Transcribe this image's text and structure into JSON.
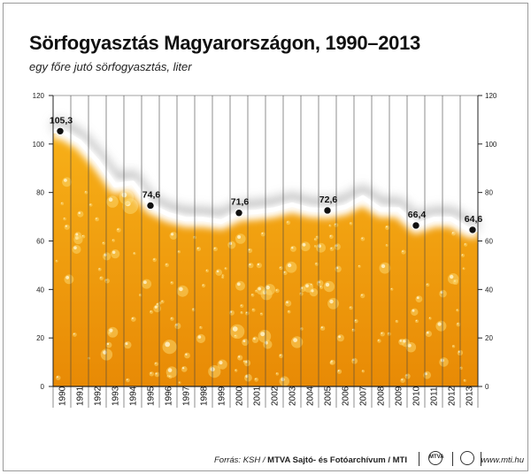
{
  "header": {
    "title": "Sörfogyasztás Magyarországon, 1990–2013",
    "subtitle": "egy főre jutó sörfogyasztás, liter"
  },
  "footer": {
    "source_prefix": "Forrás: KSH / ",
    "source_bold": "MTVA Sajtó- és Fotóarchívum / MTI",
    "logo1_text": "MTVA",
    "url": "www.mti.hu"
  },
  "colors": {
    "fill_top": "#f7b018",
    "fill_bottom": "#e88a05",
    "foam": "#ffffff",
    "grid": "#444444",
    "marker": "#111111"
  },
  "chart_data": {
    "type": "area",
    "title": "Sörfogyasztás Magyarországon, 1990–2013",
    "subtitle": "egy főre jutó sörfogyasztás, liter",
    "x": [
      "1990",
      "1991",
      "1992",
      "1993",
      "1994",
      "1995",
      "1996",
      "1997",
      "1998",
      "1999",
      "2000",
      "2001",
      "2002",
      "2003",
      "2004",
      "2005",
      "2006",
      "2007",
      "2008",
      "2009",
      "2010",
      "2011",
      "2012",
      "2013"
    ],
    "values": [
      105.3,
      101,
      93,
      83,
      84,
      74.6,
      71,
      69,
      69,
      68,
      71.6,
      72,
      73,
      75,
      73,
      72.6,
      74,
      78,
      73,
      73,
      66.4,
      69,
      69,
      64.6
    ],
    "labeled_points": [
      {
        "x": "1990",
        "value": "105,3"
      },
      {
        "x": "1995",
        "value": "74,6"
      },
      {
        "x": "2000",
        "value": "71,6"
      },
      {
        "x": "2005",
        "value": "72,6"
      },
      {
        "x": "2010",
        "value": "66,4"
      },
      {
        "x": "2013",
        "value": "64,6"
      }
    ],
    "yticks": [
      0,
      20,
      40,
      60,
      80,
      100,
      120
    ],
    "ylim": [
      0,
      120
    ],
    "grid": true,
    "legend": "none"
  }
}
